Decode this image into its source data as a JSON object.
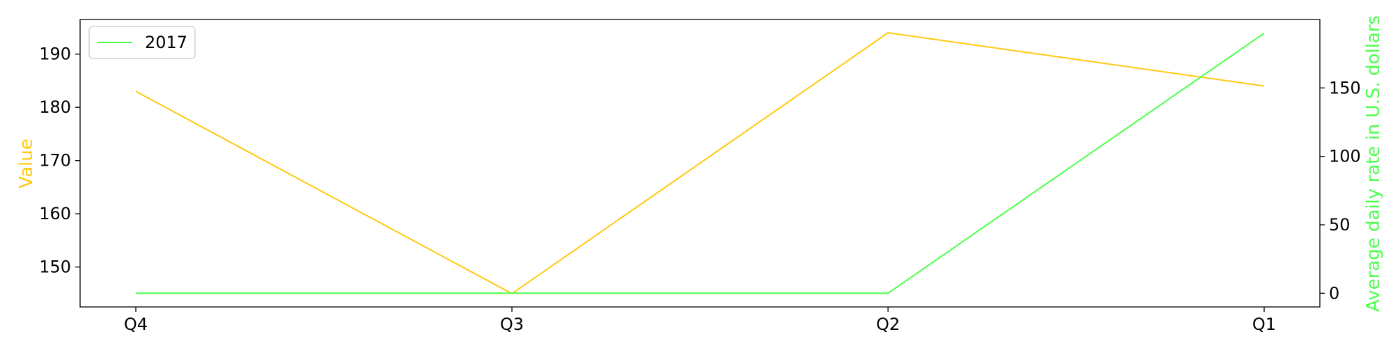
{
  "chart_data": {
    "type": "line",
    "categories": [
      "Q4",
      "Q3",
      "Q2",
      "Q1"
    ],
    "series": [
      {
        "axis": "left",
        "values": [
          183,
          145,
          194,
          184
        ],
        "color": "#ffc90e"
      },
      {
        "name": "2017",
        "axis": "right",
        "values": [
          0,
          0,
          0,
          190
        ],
        "color": "#4cff4c"
      }
    ],
    "ylabel": "Value",
    "ylabel_right": "Average daily rate in U.S. dollars",
    "ylim": [
      142.5,
      196.5
    ],
    "ylim_right": [
      -10,
      200
    ],
    "yticks": [
      150,
      160,
      170,
      180,
      190
    ],
    "yticks_right": [
      0,
      50,
      100,
      150
    ],
    "grid": false,
    "legend": {
      "position": "top-left",
      "entries": [
        "2017"
      ]
    }
  }
}
